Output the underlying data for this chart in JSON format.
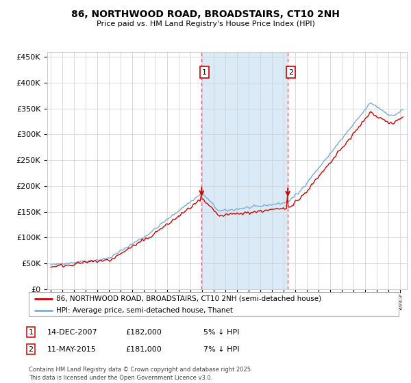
{
  "title": "86, NORTHWOOD ROAD, BROADSTAIRS, CT10 2NH",
  "subtitle": "Price paid vs. HM Land Registry's House Price Index (HPI)",
  "legend_line1": "86, NORTHWOOD ROAD, BROADSTAIRS, CT10 2NH (semi-detached house)",
  "legend_line2": "HPI: Average price, semi-detached house, Thanet",
  "annotation1_label": "1",
  "annotation1_date": "14-DEC-2007",
  "annotation1_price": "£182,000",
  "annotation1_note": "5% ↓ HPI",
  "annotation2_label": "2",
  "annotation2_date": "11-MAY-2015",
  "annotation2_price": "£181,000",
  "annotation2_note": "7% ↓ HPI",
  "footer": "Contains HM Land Registry data © Crown copyright and database right 2025.\nThis data is licensed under the Open Government Licence v3.0.",
  "hpi_color": "#7aabdc",
  "price_color": "#cc0000",
  "shading_color": "#daeaf7",
  "vline_color": "#e06060",
  "ylim": [
    0,
    460000
  ],
  "yticks": [
    0,
    50000,
    100000,
    150000,
    200000,
    250000,
    300000,
    350000,
    400000,
    450000
  ],
  "t1_year": 2007.96,
  "t2_year": 2015.37,
  "t1_price": 182000,
  "t2_price": 181000
}
